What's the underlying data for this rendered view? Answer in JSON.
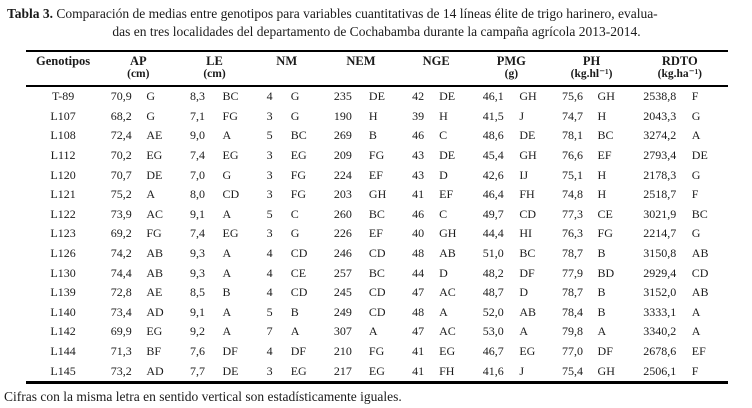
{
  "title": {
    "label": "Tabla 3.",
    "line1": "Comparación de medias entre genotipos para variables cuantitativas de 14 líneas élite de trigo harinero, evalua-",
    "line2": "das en tres localidades del departamento de Cochabamba durante la campaña agrícola 2013-2014."
  },
  "table": {
    "genotype_header": "Genotipos",
    "columns": [
      {
        "abbr": "AP",
        "unit": "(cm)"
      },
      {
        "abbr": "LE",
        "unit": "(cm)"
      },
      {
        "abbr": "NM",
        "unit": ""
      },
      {
        "abbr": "NEM",
        "unit": ""
      },
      {
        "abbr": "NGE",
        "unit": ""
      },
      {
        "abbr": "PMG",
        "unit": "(g)"
      },
      {
        "abbr": "PH",
        "unit": "(kg.hl⁻¹)"
      },
      {
        "abbr": "RDTO",
        "unit": "(kg.ha⁻¹)"
      }
    ],
    "rows": [
      {
        "genotype": "T-89",
        "cells": [
          [
            "70,9",
            "G"
          ],
          [
            "8,3",
            "BC"
          ],
          [
            "4",
            "G"
          ],
          [
            "235",
            "DE"
          ],
          [
            "42",
            "DE"
          ],
          [
            "46,1",
            "GH"
          ],
          [
            "75,6",
            "GH"
          ],
          [
            "2538,8",
            "F"
          ]
        ]
      },
      {
        "genotype": "L107",
        "cells": [
          [
            "68,2",
            "G"
          ],
          [
            "7,1",
            "FG"
          ],
          [
            "3",
            "G"
          ],
          [
            "190",
            "H"
          ],
          [
            "39",
            "H"
          ],
          [
            "41,5",
            "J"
          ],
          [
            "74,7",
            "H"
          ],
          [
            "2043,3",
            "G"
          ]
        ]
      },
      {
        "genotype": "L108",
        "cells": [
          [
            "72,4",
            "AE"
          ],
          [
            "9,0",
            "A"
          ],
          [
            "5",
            "BC"
          ],
          [
            "269",
            "B"
          ],
          [
            "46",
            "C"
          ],
          [
            "48,6",
            "DE"
          ],
          [
            "78,1",
            "BC"
          ],
          [
            "3274,2",
            "A"
          ]
        ]
      },
      {
        "genotype": "L112",
        "cells": [
          [
            "70,2",
            "EG"
          ],
          [
            "7,4",
            "EG"
          ],
          [
            "3",
            "EG"
          ],
          [
            "209",
            "FG"
          ],
          [
            "43",
            "DE"
          ],
          [
            "45,4",
            "GH"
          ],
          [
            "76,6",
            "EF"
          ],
          [
            "2793,4",
            "DE"
          ]
        ]
      },
      {
        "genotype": "L120",
        "cells": [
          [
            "70,7",
            "DE"
          ],
          [
            "7,0",
            "G"
          ],
          [
            "3",
            "FG"
          ],
          [
            "224",
            "EF"
          ],
          [
            "43",
            "D"
          ],
          [
            "42,6",
            "IJ"
          ],
          [
            "75,1",
            "H"
          ],
          [
            "2178,3",
            "G"
          ]
        ]
      },
      {
        "genotype": "L121",
        "cells": [
          [
            "75,2",
            "A"
          ],
          [
            "8,0",
            "CD"
          ],
          [
            "3",
            "FG"
          ],
          [
            "203",
            "GH"
          ],
          [
            "41",
            "EF"
          ],
          [
            "46,4",
            "FH"
          ],
          [
            "74,8",
            "H"
          ],
          [
            "2518,7",
            "F"
          ]
        ]
      },
      {
        "genotype": "L122",
        "cells": [
          [
            "73,9",
            "AC"
          ],
          [
            "9,1",
            "A"
          ],
          [
            "5",
            "C"
          ],
          [
            "260",
            "BC"
          ],
          [
            "46",
            "C"
          ],
          [
            "49,7",
            "CD"
          ],
          [
            "77,3",
            "CE"
          ],
          [
            "3021,9",
            "BC"
          ]
        ]
      },
      {
        "genotype": "L123",
        "cells": [
          [
            "69,2",
            "FG"
          ],
          [
            "7,4",
            "EG"
          ],
          [
            "3",
            "G"
          ],
          [
            "226",
            "EF"
          ],
          [
            "40",
            "GH"
          ],
          [
            "44,4",
            "HI"
          ],
          [
            "76,3",
            "FG"
          ],
          [
            "2214,7",
            "G"
          ]
        ]
      },
      {
        "genotype": "L126",
        "cells": [
          [
            "74,2",
            "AB"
          ],
          [
            "9,3",
            "A"
          ],
          [
            "4",
            "CD"
          ],
          [
            "246",
            "CD"
          ],
          [
            "48",
            "AB"
          ],
          [
            "51,0",
            "BC"
          ],
          [
            "78,7",
            "B"
          ],
          [
            "3150,8",
            "AB"
          ]
        ]
      },
      {
        "genotype": "L130",
        "cells": [
          [
            "74,4",
            "AB"
          ],
          [
            "9,3",
            "A"
          ],
          [
            "4",
            "CE"
          ],
          [
            "257",
            "BC"
          ],
          [
            "44",
            "D"
          ],
          [
            "48,2",
            "DF"
          ],
          [
            "77,9",
            "BD"
          ],
          [
            "2929,4",
            "CD"
          ]
        ]
      },
      {
        "genotype": "L139",
        "cells": [
          [
            "72,8",
            "AE"
          ],
          [
            "8,5",
            "B"
          ],
          [
            "4",
            "CD"
          ],
          [
            "245",
            "CD"
          ],
          [
            "47",
            "AC"
          ],
          [
            "48,7",
            "D"
          ],
          [
            "78,7",
            "B"
          ],
          [
            "3152,0",
            "AB"
          ]
        ]
      },
      {
        "genotype": "L140",
        "cells": [
          [
            "73,4",
            "AD"
          ],
          [
            "9,1",
            "A"
          ],
          [
            "5",
            "B"
          ],
          [
            "249",
            "CD"
          ],
          [
            "48",
            "A"
          ],
          [
            "52,0",
            "AB"
          ],
          [
            "78,4",
            "B"
          ],
          [
            "3333,1",
            "A"
          ]
        ]
      },
      {
        "genotype": "L142",
        "cells": [
          [
            "69,9",
            "EG"
          ],
          [
            "9,2",
            "A"
          ],
          [
            "7",
            "A"
          ],
          [
            "307",
            "A"
          ],
          [
            "47",
            "AC"
          ],
          [
            "53,0",
            "A"
          ],
          [
            "79,8",
            "A"
          ],
          [
            "3340,2",
            "A"
          ]
        ]
      },
      {
        "genotype": "L144",
        "cells": [
          [
            "71,3",
            "BF"
          ],
          [
            "7,6",
            "DF"
          ],
          [
            "4",
            "DF"
          ],
          [
            "210",
            "FG"
          ],
          [
            "41",
            "EG"
          ],
          [
            "46,7",
            "EG"
          ],
          [
            "77,0",
            "DF"
          ],
          [
            "2678,6",
            "EF"
          ]
        ]
      },
      {
        "genotype": "L145",
        "cells": [
          [
            "73,2",
            "AD"
          ],
          [
            "7,7",
            "DE"
          ],
          [
            "3",
            "EG"
          ],
          [
            "217",
            "EG"
          ],
          [
            "41",
            "FH"
          ],
          [
            "41,6",
            "J"
          ],
          [
            "75,4",
            "GH"
          ],
          [
            "2506,1",
            "F"
          ]
        ]
      }
    ]
  },
  "footnote": "Cifras con la misma letra en sentido vertical son estadísticamente iguales.",
  "colors": {
    "text": "#1b1b1b",
    "background": "#ffffff",
    "border": "#000000"
  }
}
